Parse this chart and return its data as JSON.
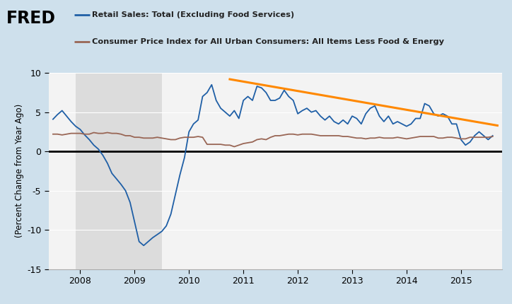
{
  "legend_line1": "Retail Sales: Total (Excluding Food Services)",
  "legend_line2": "Consumer Price Index for All Urban Consumers: All Items Less Food & Energy",
  "ylabel": "(Percent Change from Year Ago)",
  "ylim": [
    -15,
    10
  ],
  "yticks": [
    -15,
    -10,
    -5,
    0,
    5,
    10
  ],
  "xlim_start": 2007.42,
  "xlim_end": 2015.75,
  "recession_start": 2007.917,
  "recession_end": 2009.5,
  "bg_outer": "#cee0ec",
  "bg_recession": "#dcdcdc",
  "bg_normal": "#f3f3f3",
  "retail_color": "#1f5fa6",
  "cpi_color": "#996655",
  "trendline_color": "#ff8800",
  "zero_line_color": "#000000",
  "retail_data_x": [
    2007.5,
    2007.583,
    2007.667,
    2007.75,
    2007.833,
    2007.917,
    2008.0,
    2008.083,
    2008.167,
    2008.25,
    2008.333,
    2008.417,
    2008.5,
    2008.583,
    2008.667,
    2008.75,
    2008.833,
    2008.917,
    2009.0,
    2009.083,
    2009.167,
    2009.25,
    2009.333,
    2009.417,
    2009.5,
    2009.583,
    2009.667,
    2009.75,
    2009.833,
    2009.917,
    2010.0,
    2010.083,
    2010.167,
    2010.25,
    2010.333,
    2010.417,
    2010.5,
    2010.583,
    2010.667,
    2010.75,
    2010.833,
    2010.917,
    2011.0,
    2011.083,
    2011.167,
    2011.25,
    2011.333,
    2011.417,
    2011.5,
    2011.583,
    2011.667,
    2011.75,
    2011.833,
    2011.917,
    2012.0,
    2012.083,
    2012.167,
    2012.25,
    2012.333,
    2012.417,
    2012.5,
    2012.583,
    2012.667,
    2012.75,
    2012.833,
    2012.917,
    2013.0,
    2013.083,
    2013.167,
    2013.25,
    2013.333,
    2013.417,
    2013.5,
    2013.583,
    2013.667,
    2013.75,
    2013.833,
    2013.917,
    2014.0,
    2014.083,
    2014.167,
    2014.25,
    2014.333,
    2014.417,
    2014.5,
    2014.583,
    2014.667,
    2014.75,
    2014.833,
    2014.917,
    2015.0,
    2015.083,
    2015.167,
    2015.25,
    2015.333,
    2015.417,
    2015.5,
    2015.583
  ],
  "retail_data_y": [
    4.1,
    4.7,
    5.2,
    4.5,
    3.8,
    3.2,
    2.8,
    2.1,
    1.5,
    0.8,
    0.3,
    -0.5,
    -1.5,
    -2.8,
    -3.5,
    -4.2,
    -5.0,
    -6.5,
    -9.0,
    -11.5,
    -12.0,
    -11.5,
    -11.0,
    -10.6,
    -10.2,
    -9.5,
    -8.0,
    -5.5,
    -3.0,
    -0.8,
    2.5,
    3.5,
    4.0,
    7.0,
    7.5,
    8.5,
    6.5,
    5.5,
    5.0,
    4.5,
    5.2,
    4.2,
    6.5,
    7.0,
    6.5,
    8.3,
    8.1,
    7.5,
    6.5,
    6.5,
    6.8,
    7.8,
    7.0,
    6.5,
    4.8,
    5.2,
    5.5,
    5.0,
    5.2,
    4.5,
    4.0,
    4.5,
    3.8,
    3.5,
    4.0,
    3.5,
    4.5,
    4.2,
    3.5,
    4.8,
    5.5,
    5.8,
    4.5,
    3.8,
    4.5,
    3.5,
    3.8,
    3.5,
    3.2,
    3.5,
    4.2,
    4.2,
    6.1,
    5.8,
    4.8,
    4.5,
    4.8,
    4.5,
    3.5,
    3.5,
    1.5,
    0.8,
    1.2,
    2.0,
    2.5,
    2.0,
    1.5,
    2.0
  ],
  "cpi_data_x": [
    2007.5,
    2007.583,
    2007.667,
    2007.75,
    2007.833,
    2007.917,
    2008.0,
    2008.083,
    2008.167,
    2008.25,
    2008.333,
    2008.417,
    2008.5,
    2008.583,
    2008.667,
    2008.75,
    2008.833,
    2008.917,
    2009.0,
    2009.083,
    2009.167,
    2009.25,
    2009.333,
    2009.417,
    2009.5,
    2009.583,
    2009.667,
    2009.75,
    2009.833,
    2009.917,
    2010.0,
    2010.083,
    2010.167,
    2010.25,
    2010.333,
    2010.417,
    2010.5,
    2010.583,
    2010.667,
    2010.75,
    2010.833,
    2010.917,
    2011.0,
    2011.083,
    2011.167,
    2011.25,
    2011.333,
    2011.417,
    2011.5,
    2011.583,
    2011.667,
    2011.75,
    2011.833,
    2011.917,
    2012.0,
    2012.083,
    2012.167,
    2012.25,
    2012.333,
    2012.417,
    2012.5,
    2012.583,
    2012.667,
    2012.75,
    2012.833,
    2012.917,
    2013.0,
    2013.083,
    2013.167,
    2013.25,
    2013.333,
    2013.417,
    2013.5,
    2013.583,
    2013.667,
    2013.75,
    2013.833,
    2013.917,
    2014.0,
    2014.083,
    2014.167,
    2014.25,
    2014.333,
    2014.417,
    2014.5,
    2014.583,
    2014.667,
    2014.75,
    2014.833,
    2014.917,
    2015.0,
    2015.083,
    2015.167,
    2015.25,
    2015.333,
    2015.417,
    2015.5,
    2015.583
  ],
  "cpi_data_y": [
    2.2,
    2.2,
    2.1,
    2.2,
    2.3,
    2.3,
    2.3,
    2.2,
    2.2,
    2.4,
    2.3,
    2.3,
    2.4,
    2.3,
    2.3,
    2.2,
    2.0,
    2.0,
    1.8,
    1.8,
    1.7,
    1.7,
    1.7,
    1.8,
    1.7,
    1.6,
    1.5,
    1.5,
    1.7,
    1.8,
    1.8,
    1.8,
    1.9,
    1.8,
    0.9,
    0.9,
    0.9,
    0.9,
    0.8,
    0.8,
    0.6,
    0.8,
    1.0,
    1.1,
    1.2,
    1.5,
    1.6,
    1.5,
    1.8,
    2.0,
    2.0,
    2.1,
    2.2,
    2.2,
    2.1,
    2.2,
    2.2,
    2.2,
    2.1,
    2.0,
    2.0,
    2.0,
    2.0,
    2.0,
    1.9,
    1.9,
    1.8,
    1.7,
    1.7,
    1.6,
    1.7,
    1.7,
    1.8,
    1.7,
    1.7,
    1.7,
    1.8,
    1.7,
    1.6,
    1.7,
    1.8,
    1.9,
    1.9,
    1.9,
    1.9,
    1.7,
    1.7,
    1.8,
    1.8,
    1.7,
    1.6,
    1.6,
    1.8,
    1.8,
    1.8,
    1.8,
    1.8,
    1.9
  ],
  "trendline_x": [
    2010.75,
    2015.67
  ],
  "trendline_y": [
    9.2,
    3.3
  ],
  "xtick_positions": [
    2008,
    2009,
    2010,
    2011,
    2012,
    2013,
    2014,
    2015
  ],
  "xtick_labels": [
    "2008",
    "2009",
    "2010",
    "2011",
    "2012",
    "2013",
    "2014",
    "2015"
  ],
  "fred_logo_color": "#000000",
  "legend_line_color1": "#1f5fa6",
  "legend_line_color2": "#996655"
}
